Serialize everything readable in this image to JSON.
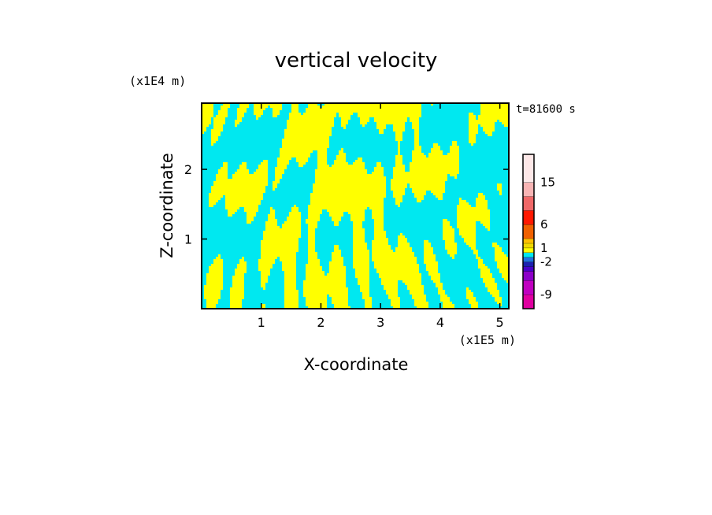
{
  "chart_data": {
    "type": "heatmap",
    "title": "vertical velocity",
    "xlabel": "X-coordinate",
    "ylabel": "Z-coordinate",
    "x_unit": "(x1E5 m)",
    "y_unit": "(x1E4 m)",
    "time_label": "t=81600 s",
    "xlim": [
      0,
      5.15
    ],
    "ylim": [
      0,
      2.95
    ],
    "x_ticks": [
      1,
      2,
      3,
      4,
      5
    ],
    "y_ticks": [
      1,
      2
    ],
    "dominant_classes": {
      "positive": "yellow (0 to 1)",
      "negative": "cyan (-1 to 0)"
    },
    "colorbar": {
      "labels": [
        {
          "text": "15",
          "value": 15
        },
        {
          "text": "6",
          "value": 6
        },
        {
          "text": "1",
          "value": 1
        },
        {
          "text": "-2",
          "value": -2
        },
        {
          "text": "-9",
          "value": -9
        }
      ],
      "levels": [
        {
          "lo": -12,
          "hi": -9,
          "color": "#e000a0"
        },
        {
          "lo": -9,
          "hi": -6,
          "color": "#c000c0"
        },
        {
          "lo": -6,
          "hi": -4,
          "color": "#8c00c8"
        },
        {
          "lo": -4,
          "hi": -3,
          "color": "#4800c8"
        },
        {
          "lo": -3,
          "hi": -2,
          "color": "#1c20b0"
        },
        {
          "lo": -2,
          "hi": -1,
          "color": "#2070e0"
        },
        {
          "lo": -1,
          "hi": 0,
          "color": "#00e8f0"
        },
        {
          "lo": 0,
          "hi": 1,
          "color": "#ffff00"
        },
        {
          "lo": 1,
          "hi": 2,
          "color": "#f0d800"
        },
        {
          "lo": 2,
          "hi": 3,
          "color": "#ffc000"
        },
        {
          "lo": 3,
          "hi": 6,
          "color": "#f06000"
        },
        {
          "lo": 6,
          "hi": 9,
          "color": "#ff1800"
        },
        {
          "lo": 9,
          "hi": 12,
          "color": "#f06868"
        },
        {
          "lo": 12,
          "hi": 15,
          "color": "#f8b4b4"
        },
        {
          "lo": 15,
          "hi": 21,
          "color": "#fde8e8"
        }
      ]
    }
  }
}
